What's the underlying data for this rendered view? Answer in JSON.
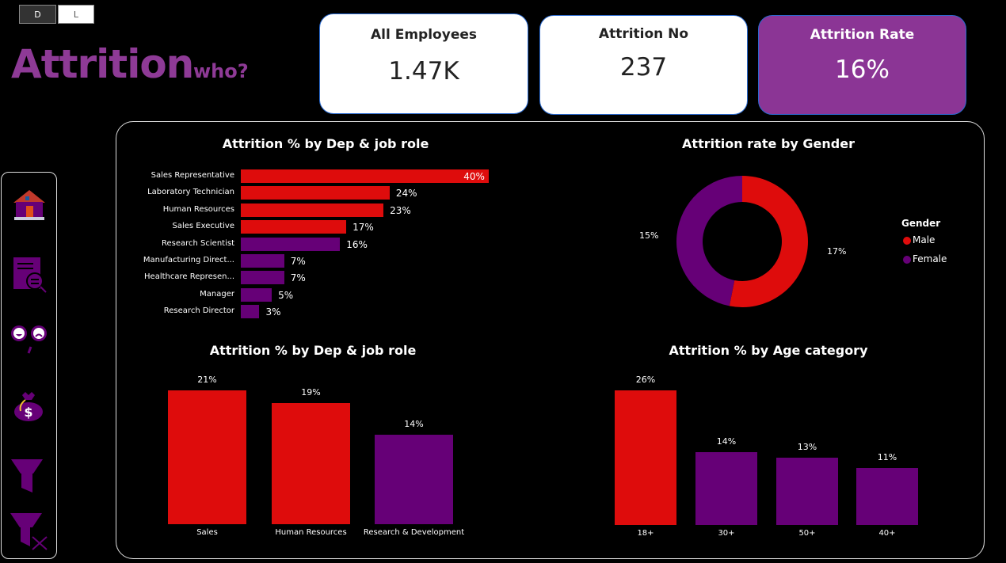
{
  "toggle": {
    "dark": "D",
    "light": "L"
  },
  "header": {
    "title": "Attrition",
    "subtitle": "who?"
  },
  "kpis": [
    {
      "label": "All Employees",
      "value": "1.47K"
    },
    {
      "label": "Attrition No",
      "value": "237"
    },
    {
      "label": "Attrition Rate",
      "value": "16%"
    }
  ],
  "sidebar": {
    "icons": [
      "home-icon",
      "report-search-icon",
      "satisfaction-gauge-icon",
      "money-bag-icon",
      "filter-icon",
      "clear-filter-icon"
    ]
  },
  "colors": {
    "red": "#de0c0c",
    "purple": "#660077",
    "accent": "#8e3a96"
  },
  "chart_data": [
    {
      "type": "bar",
      "orientation": "horizontal",
      "title": "Attrition % by Dep & job role",
      "categories": [
        "Sales Representative",
        "Laboratory Technician",
        "Human Resources",
        "Sales Executive",
        "Research Scientist",
        "Manufacturing Direct...",
        "Healthcare Represen...",
        "Manager",
        "Research Director"
      ],
      "values": [
        40,
        24,
        23,
        17,
        16,
        7,
        7,
        5,
        3
      ],
      "labels": [
        "40%",
        "24%",
        "23%",
        "17%",
        "16%",
        "7%",
        "7%",
        "5%",
        "3%"
      ],
      "colors": [
        "#de0c0c",
        "#de0c0c",
        "#de0c0c",
        "#de0c0c",
        "#660077",
        "#660077",
        "#660077",
        "#660077",
        "#660077"
      ]
    },
    {
      "type": "pie",
      "donut": true,
      "title": "Attrition rate by Gender",
      "legend_title": "Gender",
      "legend": "right",
      "categories": [
        "Male",
        "Female"
      ],
      "values": [
        17,
        15
      ],
      "labels": [
        "17%",
        "15%"
      ],
      "colors": [
        "#de0c0c",
        "#660077"
      ]
    },
    {
      "type": "bar",
      "title": "Attrition % by Dep & job role",
      "categories": [
        "Sales",
        "Human Resources",
        "Research & Development"
      ],
      "values": [
        21,
        19,
        14
      ],
      "labels": [
        "21%",
        "19%",
        "14%"
      ],
      "colors": [
        "#de0c0c",
        "#de0c0c",
        "#660077"
      ]
    },
    {
      "type": "bar",
      "title": "Attrition % by Age category",
      "categories": [
        "18+",
        "30+",
        "50+",
        "40+"
      ],
      "values": [
        26,
        14,
        13,
        11
      ],
      "labels": [
        "26%",
        "14%",
        "13%",
        "11%"
      ],
      "colors": [
        "#de0c0c",
        "#660077",
        "#660077",
        "#660077"
      ]
    }
  ]
}
